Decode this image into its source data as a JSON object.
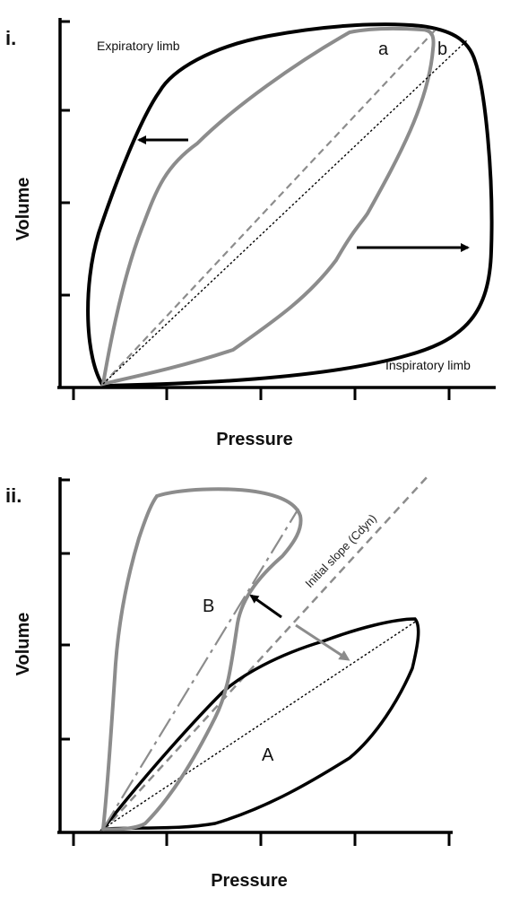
{
  "panels": [
    {
      "label": "i.",
      "x_axis_title": "Pressure",
      "y_axis_title": "Volume",
      "annotations": {
        "expiratory": "Expiratory limb",
        "inspiratory": "Inspiratory limb",
        "point_a": "a",
        "point_b": "b"
      },
      "colors": {
        "outer_loop": "#000000",
        "inner_loop": "#8c8c8c",
        "dashed_line": "#8c8c8c",
        "dotted_line": "#000000"
      }
    },
    {
      "label": "ii.",
      "x_axis_title": "Pressure",
      "y_axis_title": "Volume",
      "annotations": {
        "slope": "Initial slope (Cdyn)",
        "loop_a": "A",
        "loop_b": "B"
      },
      "colors": {
        "loop_a": "#000000",
        "loop_b": "#8c8c8c",
        "slope_line": "#8c8c8c"
      }
    }
  ]
}
